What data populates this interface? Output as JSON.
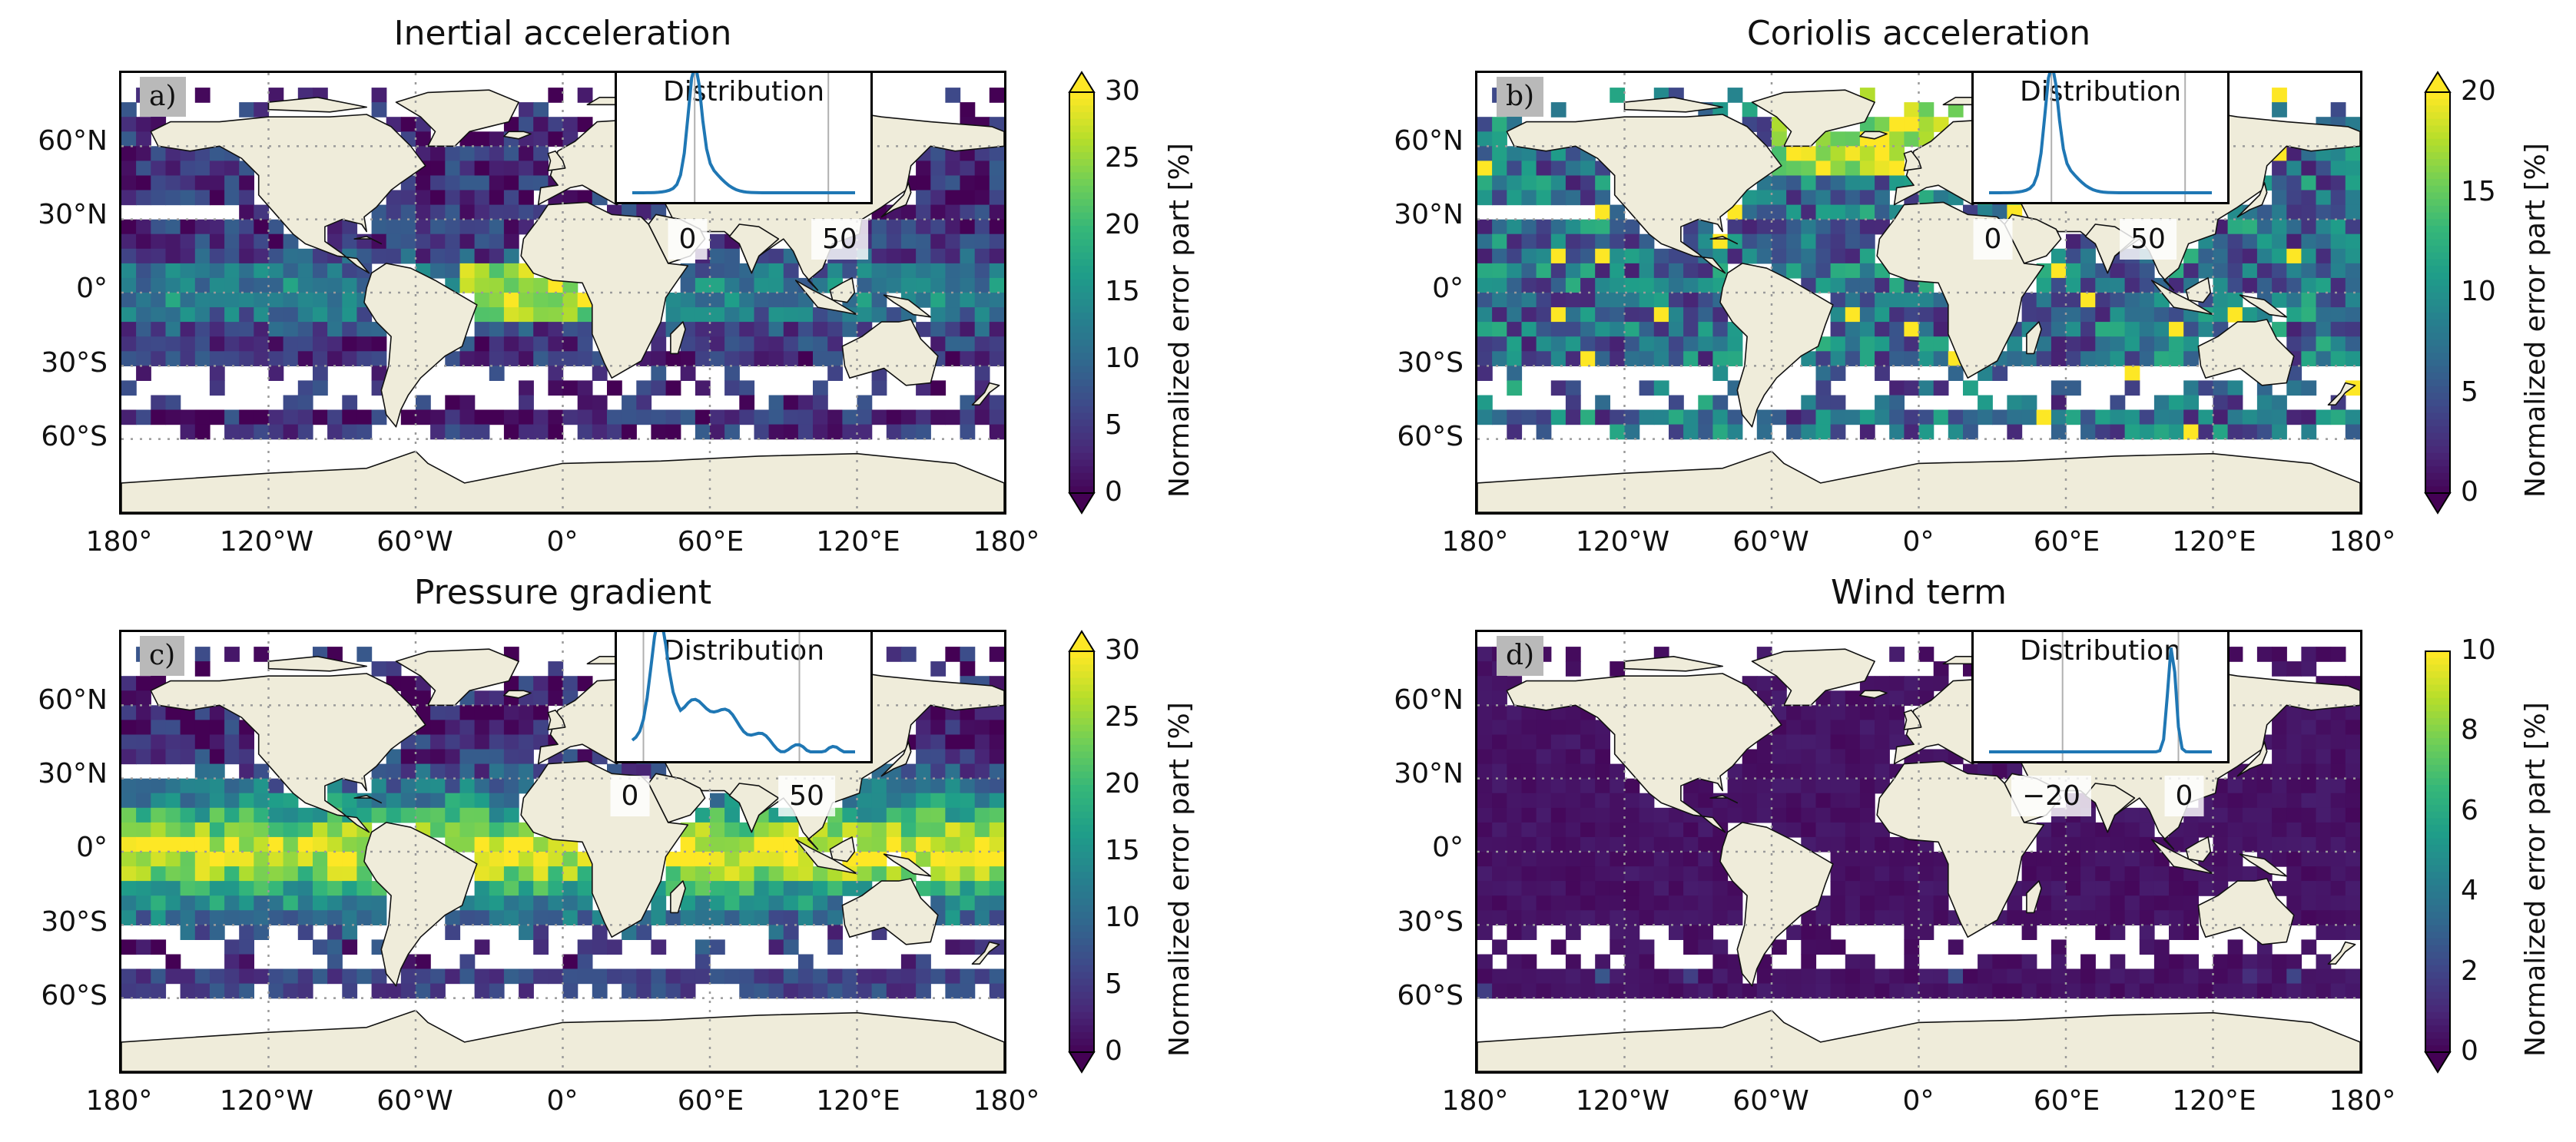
{
  "colors": {
    "land": "#efecda",
    "ocean_missing": "#ffffff",
    "coast": "#111111",
    "grid": "#9a9a9a",
    "inset_line": "#1f77b4",
    "viridis": [
      "#440154",
      "#482878",
      "#3e4989",
      "#31688e",
      "#26828e",
      "#1f9e89",
      "#35b779",
      "#6ece58",
      "#b5de2b",
      "#fde725"
    ]
  },
  "lat_ticks": [
    "60°N",
    "30°N",
    "0°",
    "30°S",
    "60°S"
  ],
  "lon_ticks": [
    "180°",
    "120°W",
    "60°W",
    "0°",
    "60°E",
    "120°E",
    "180°"
  ],
  "panels": [
    {
      "id": "a",
      "title": "Inertial acceleration",
      "tag": "a)",
      "colorbar": {
        "label": "Normalized error part [%]",
        "ticks": [
          "0",
          "5",
          "10",
          "15",
          "20",
          "25",
          "30"
        ],
        "extend": "both",
        "vmax": 30
      },
      "inset": {
        "title": "Distribution",
        "ticks": [
          "0",
          "50"
        ],
        "peak": "narrow-left"
      },
      "field_level": "low-mid"
    },
    {
      "id": "b",
      "title": "Coriolis acceleration",
      "tag": "b)",
      "colorbar": {
        "label": "Normalized error part [%]",
        "ticks": [
          "0",
          "5",
          "10",
          "15",
          "20"
        ],
        "extend": "both",
        "vmax": 20
      },
      "inset": {
        "title": "Distribution",
        "ticks": [
          "0",
          "50"
        ],
        "peak": "narrow-left"
      },
      "field_level": "mid"
    },
    {
      "id": "c",
      "title": "Pressure gradient",
      "tag": "c)",
      "colorbar": {
        "label": "Normalized error part [%]",
        "ticks": [
          "0",
          "5",
          "10",
          "15",
          "20",
          "25",
          "30"
        ],
        "extend": "both",
        "vmax": 30
      },
      "inset": {
        "title": "Distribution",
        "ticks": [
          "0",
          "50"
        ],
        "peak": "broad-left"
      },
      "field_level": "high-tropics"
    },
    {
      "id": "d",
      "title": "Wind term",
      "tag": "d)",
      "colorbar": {
        "label": "Normalized error part [%]",
        "ticks": [
          "0",
          "2",
          "4",
          "6",
          "8",
          "10"
        ],
        "extend": "lower",
        "vmax": 10
      },
      "inset": {
        "title": "Distribution",
        "ticks": [
          "−20",
          "0"
        ],
        "peak": "narrow-right"
      },
      "field_level": "very-low"
    }
  ]
}
